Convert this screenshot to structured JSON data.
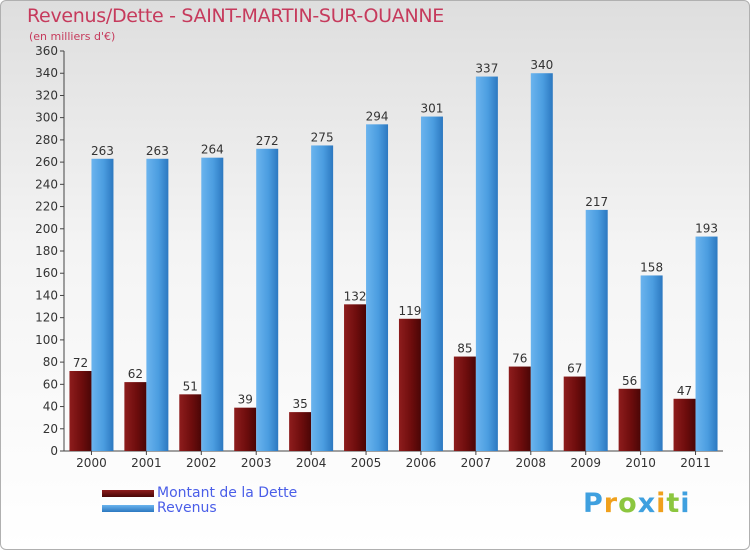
{
  "title": "Revenus/Dette - SAINT-MARTIN-SUR-OUANNE",
  "subtitle": "(en milliers d'€)",
  "legend": [
    {
      "label": "Montant de la Dette",
      "color": "#6e0d0d"
    },
    {
      "label": "Revenus",
      "color": "#3d8fd9"
    }
  ],
  "logo": {
    "text": "Proxiti",
    "colors": [
      "#3fa0df",
      "#f0a01c",
      "#8cc63f",
      "#3fa0df",
      "#f0a01c",
      "#8cc63f",
      "#3fa0df"
    ]
  },
  "chart_data": {
    "type": "bar",
    "categories": [
      "2000",
      "2001",
      "2002",
      "2003",
      "2004",
      "2005",
      "2006",
      "2007",
      "2008",
      "2009",
      "2010",
      "2011"
    ],
    "series": [
      {
        "name": "Montant de la Dette",
        "color": "#6e0d0d",
        "values": [
          72,
          62,
          51,
          39,
          35,
          132,
          119,
          85,
          76,
          67,
          56,
          47
        ]
      },
      {
        "name": "Revenus",
        "color": "#3d8fd9",
        "values": [
          263,
          263,
          264,
          272,
          275,
          294,
          301,
          337,
          340,
          217,
          158,
          193
        ]
      }
    ],
    "ylim": [
      0,
      360
    ],
    "yticks": [
      0,
      20,
      40,
      60,
      80,
      100,
      120,
      140,
      160,
      180,
      200,
      220,
      240,
      260,
      280,
      300,
      320,
      340,
      360
    ],
    "grid": false,
    "legend_position": "bottom-left"
  }
}
